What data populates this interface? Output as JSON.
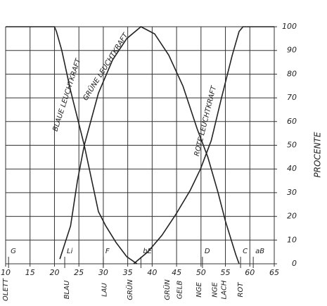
{
  "chart_data": {
    "type": "line",
    "y_label": "PROCENTE",
    "xlim": [
      10,
      65
    ],
    "xticks": [
      10,
      15,
      20,
      25,
      30,
      35,
      40,
      45,
      50,
      55,
      60,
      65
    ],
    "ylim": [
      0,
      100
    ],
    "yticks": [
      0,
      10,
      20,
      30,
      40,
      50,
      60,
      70,
      80,
      90,
      100
    ],
    "grid": true,
    "series": [
      {
        "name": "BLAUE LEUCHTKRAFT",
        "color": "#222222",
        "x": [
          10,
          20,
          20.4,
          21.5,
          23.3,
          26.1,
          29,
          30.5,
          32.6,
          34.8,
          36.9
        ],
        "values": [
          100,
          100,
          98,
          90,
          73,
          50,
          22,
          16,
          9,
          3,
          0
        ]
      },
      {
        "name": "GRÜNE LEUCHTKRAFT",
        "color": "#222222",
        "x": [
          21.1,
          23.3,
          24.7,
          26.1,
          29,
          31.9,
          34.8,
          37.7,
          40.5,
          43.4,
          46.3,
          49.2,
          51.4,
          53.5,
          55,
          57.1,
          57.8
        ],
        "values": [
          2,
          16,
          35,
          50,
          72,
          86,
          95,
          100,
          97,
          88,
          75,
          57,
          45,
          30,
          18,
          4,
          0
        ]
      },
      {
        "name": "ROTE LEUCHTKRAFT",
        "color": "#222222",
        "x": [
          36.2,
          39.1,
          42,
          44.9,
          47.8,
          49.9,
          52.1,
          54.2,
          56.4,
          57.8,
          58.6,
          65
        ],
        "values": [
          0,
          5,
          12,
          21,
          31,
          40,
          52,
          70,
          88,
          98,
          100,
          100
        ]
      }
    ],
    "lines": [
      {
        "text": "G",
        "x": 10.6
      },
      {
        "text": "Li",
        "x": 22.1
      },
      {
        "text": "F",
        "x": 30
      },
      {
        "text": "bE",
        "x": 37.7
      },
      {
        "text": "D",
        "x": 50.3
      },
      {
        "text": "C",
        "x": 58.1
      },
      {
        "text": "aB",
        "x": 60.7
      }
    ],
    "color_names": [
      {
        "text": "OLETT",
        "x": 10
      },
      {
        "text": "BLAU",
        "x": 22.5
      },
      {
        "text": "LAU",
        "x": 30.2
      },
      {
        "text": "GRÜN",
        "x": 35.5
      },
      {
        "text": "GRÜN",
        "x": 43.1
      },
      {
        "text": "GELB",
        "x": 45.6
      },
      {
        "text": "NGE",
        "x": 49.6
      },
      {
        "text": "NGE",
        "x": 52.8
      },
      {
        "text": "LACH",
        "x": 54.7
      },
      {
        "text": "ROT",
        "x": 58.1
      }
    ]
  }
}
